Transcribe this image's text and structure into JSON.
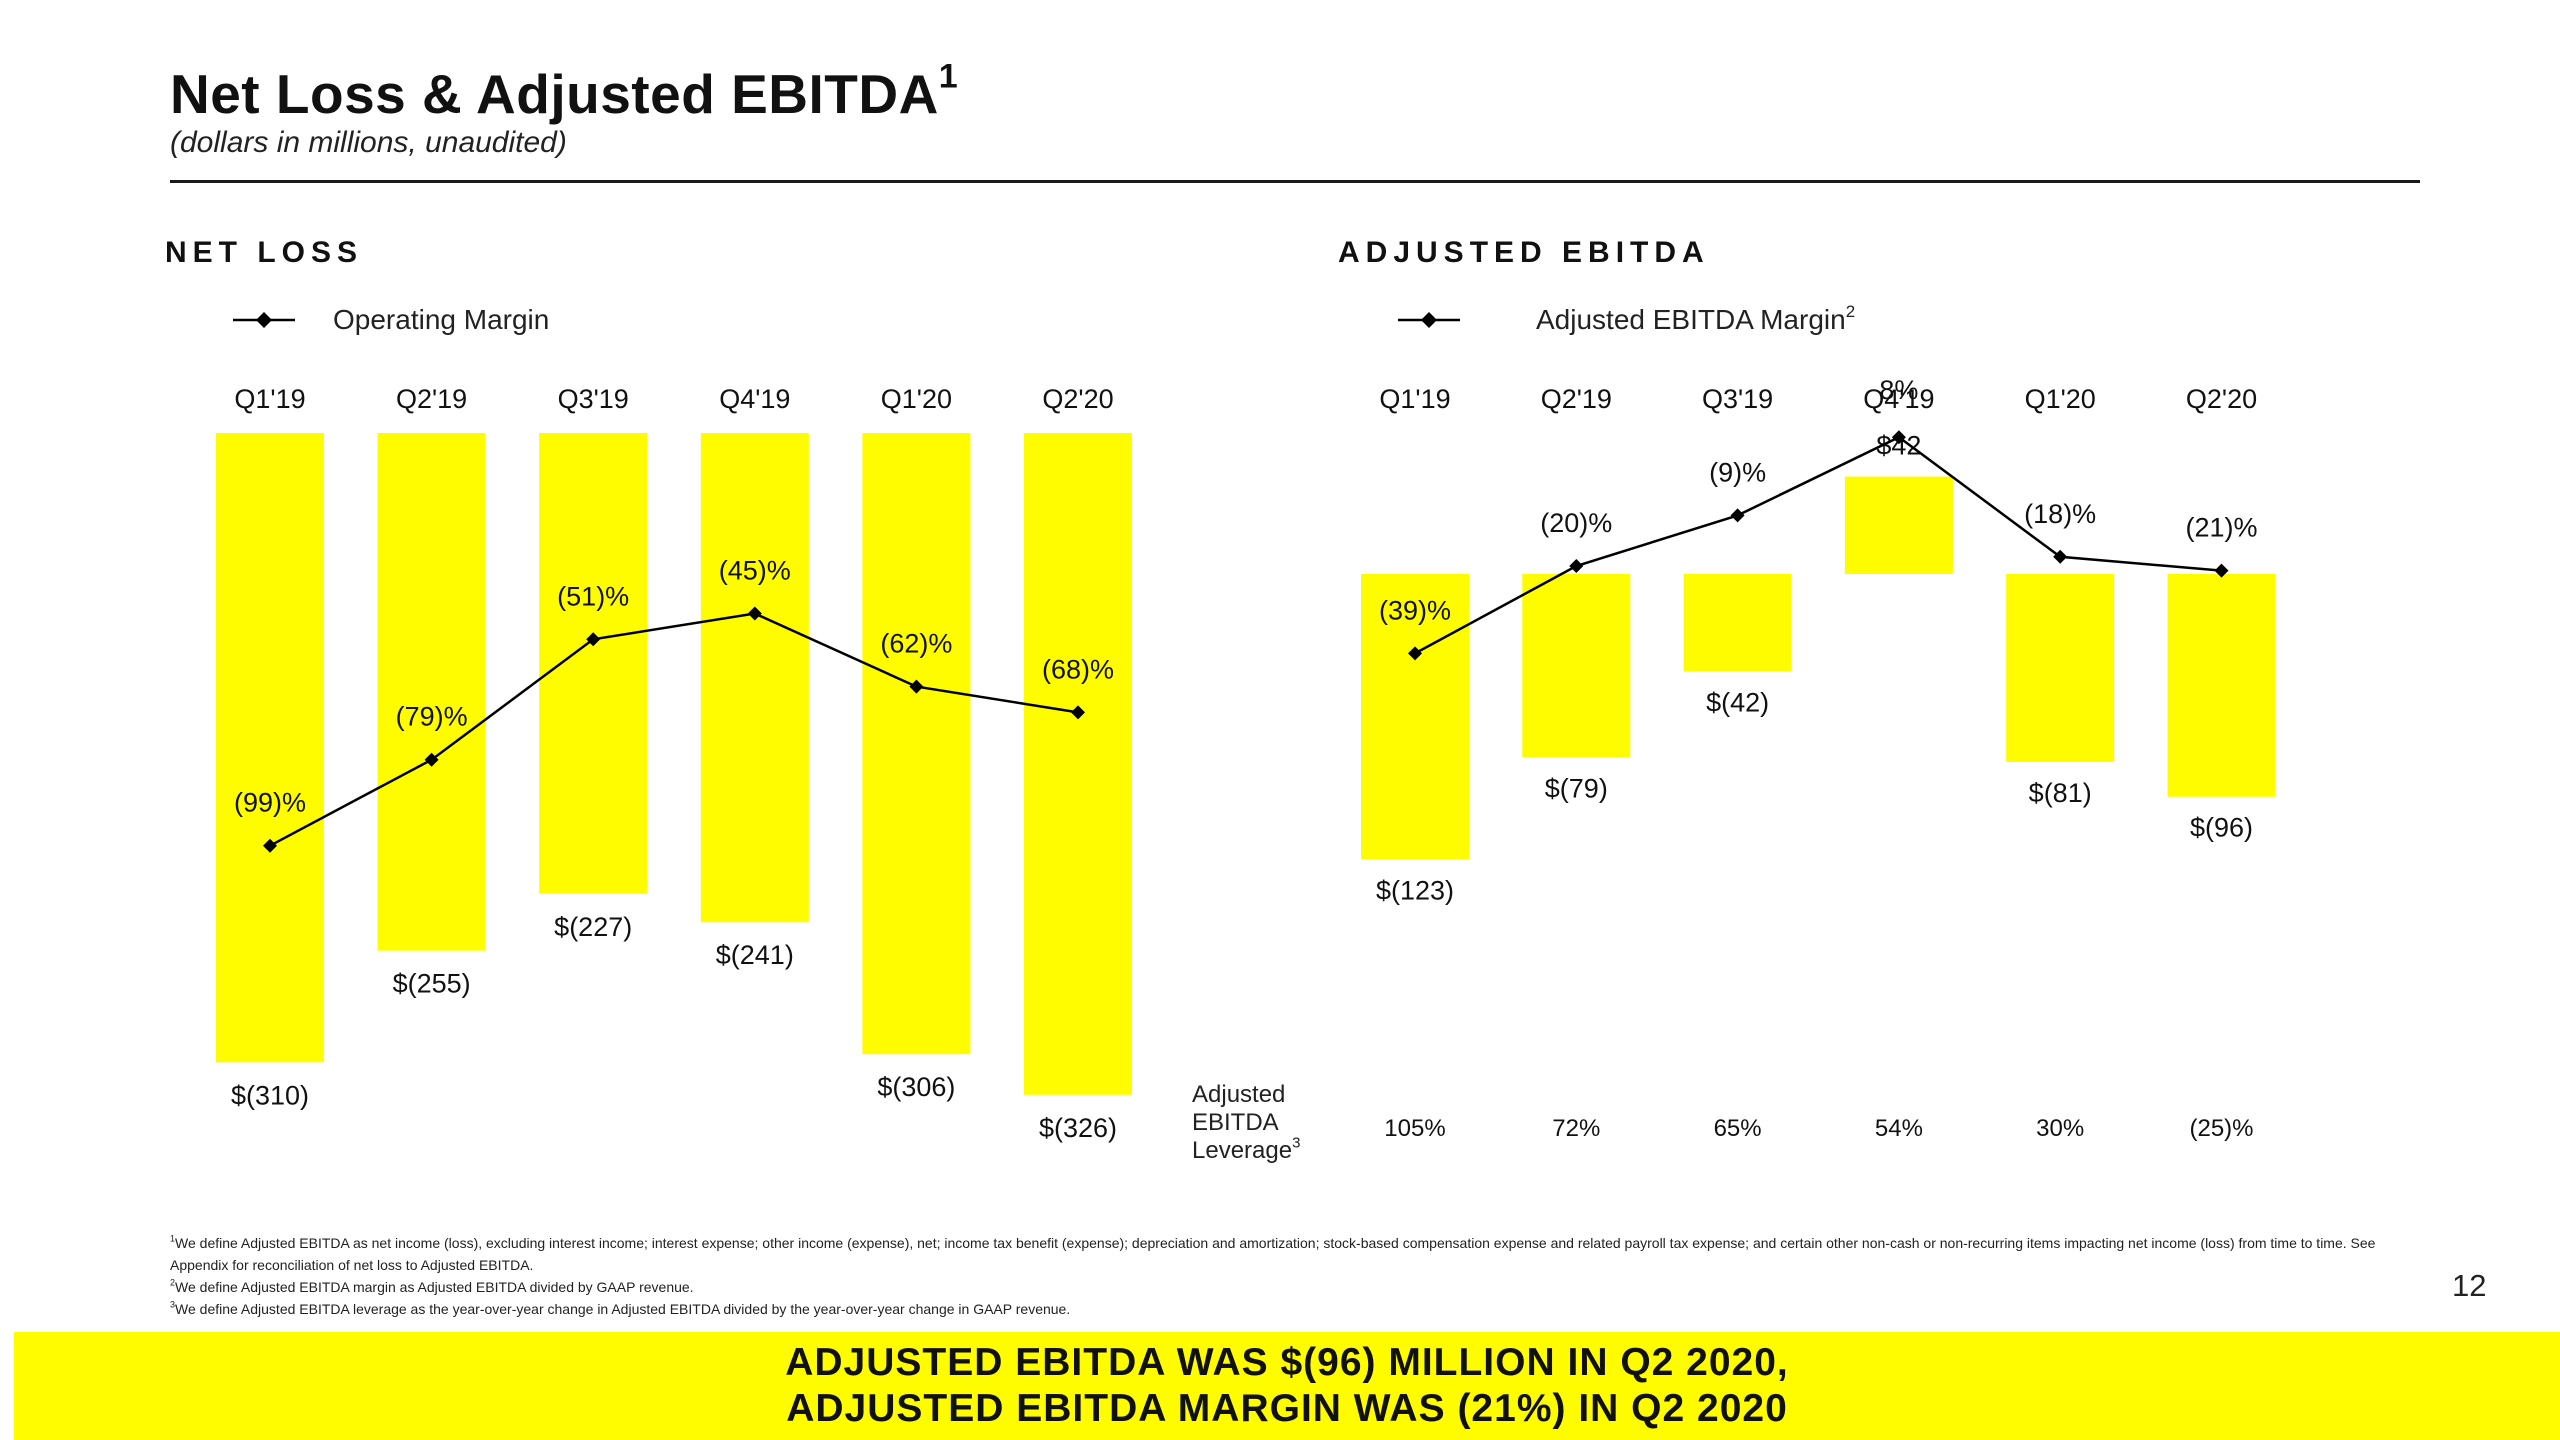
{
  "title": "Net Loss & Adjusted EBITDA",
  "title_sup": "1",
  "subtitle": "(dollars in millions, unaudited)",
  "colors": {
    "accent": "#fffc00",
    "text": "#111111",
    "line": "#000000"
  },
  "chart_data": [
    {
      "type": "bar",
      "section_label": "NET LOSS",
      "legend": "Operating Margin",
      "categories": [
        "Q1'19",
        "Q2'19",
        "Q3'19",
        "Q4'19",
        "Q1'20",
        "Q2'20"
      ],
      "values": [
        -310,
        -255,
        -227,
        -241,
        -306,
        -326
      ],
      "value_labels": [
        "$(310)",
        "$(255)",
        "$(227)",
        "$(241)",
        "$(306)",
        "$(326)"
      ],
      "line_series": {
        "name": "Operating Margin",
        "values": [
          -99,
          -79,
          -51,
          -45,
          -62,
          -68
        ],
        "labels": [
          "(99)%",
          "(79)%",
          "(51)%",
          "(45)%",
          "(62)%",
          "(68)%"
        ]
      },
      "ylim": [
        -330,
        0
      ]
    },
    {
      "type": "bar",
      "section_label": "ADJUSTED EBITDA",
      "legend": "Adjusted EBITDA Margin",
      "legend_sup": "2",
      "categories": [
        "Q1'19",
        "Q2'19",
        "Q3'19",
        "Q4'19",
        "Q1'20",
        "Q2'20"
      ],
      "values": [
        -123,
        -79,
        -42,
        42,
        -81,
        -96
      ],
      "value_labels": [
        "$(123)",
        "$(79)",
        "$(42)",
        "$42",
        "$(81)",
        "$(96)"
      ],
      "line_series": {
        "name": "Adjusted EBITDA Margin",
        "values": [
          -39,
          -20,
          -9,
          8,
          -18,
          -21
        ],
        "labels": [
          "(39)%",
          "(20)%",
          "(9)%",
          "8%",
          "(18)%",
          "(21)%"
        ]
      },
      "leverage": {
        "label_lines": [
          "Adjusted",
          "EBITDA",
          "Leverage"
        ],
        "label_sup": "3",
        "values": [
          "105%",
          "72%",
          "65%",
          "54%",
          "30%",
          "(25)%"
        ]
      },
      "ylim": [
        -130,
        50
      ]
    }
  ],
  "footnotes": [
    {
      "sup": "1",
      "text": "We define Adjusted EBITDA as net income (loss), excluding interest income; interest expense; other income (expense), net; income tax benefit (expense); depreciation and amortization; stock-based compensation expense and related payroll tax expense; and certain other non-cash or non-recurring items impacting net income (loss) from time to time. See Appendix for reconciliation of net loss to Adjusted EBITDA."
    },
    {
      "sup": "2",
      "text": "We define Adjusted EBITDA margin as Adjusted EBITDA divided by GAAP revenue."
    },
    {
      "sup": "3",
      "text": "We define Adjusted EBITDA leverage as the year-over-year change in Adjusted EBITDA divided by the year-over-year change in GAAP revenue."
    }
  ],
  "page_number": "12",
  "banner": {
    "line1": "ADJUSTED EBITDA WAS $(96) MILLION IN Q2 2020,",
    "line2": "ADJUSTED EBITDA MARGIN WAS (21%) IN Q2 2020"
  }
}
